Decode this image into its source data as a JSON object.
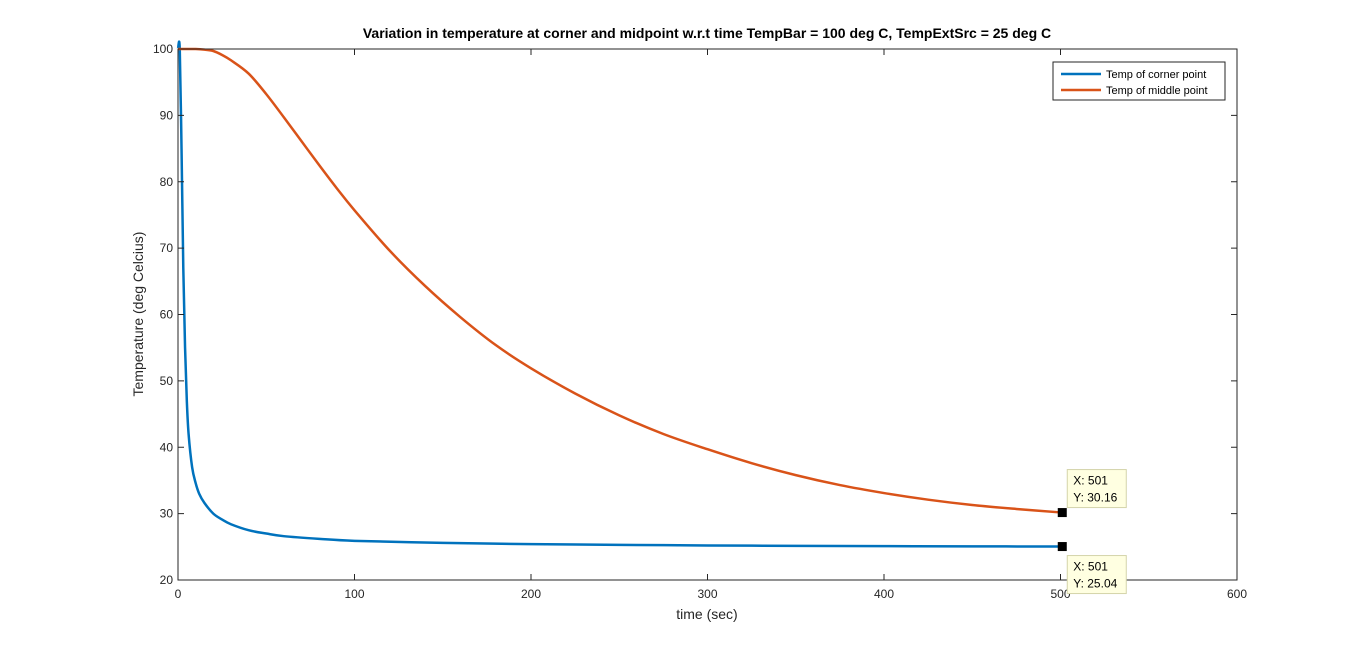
{
  "chart_data": {
    "type": "line",
    "title": "Variation in temperature at corner and midpoint w.r.t time  TempBar = 100 deg C, TempExtSrc = 25 deg C",
    "xlabel": "time (sec)",
    "ylabel": "Temperature (deg Celcius)",
    "xlim": [
      0,
      600
    ],
    "ylim": [
      20,
      100
    ],
    "xticks": [
      0,
      100,
      200,
      300,
      400,
      500,
      600
    ],
    "yticks": [
      20,
      30,
      40,
      50,
      60,
      70,
      80,
      90,
      100
    ],
    "grid": false,
    "legend_position": "top-right",
    "series": [
      {
        "name": "Temp of corner point",
        "color": "#0072BD",
        "x": [
          0,
          1,
          2,
          3,
          4,
          5,
          6,
          8,
          10,
          12,
          15,
          20,
          25,
          30,
          40,
          50,
          60,
          80,
          100,
          150,
          200,
          250,
          300,
          350,
          400,
          450,
          501
        ],
        "y": [
          100,
          100,
          85,
          67,
          55,
          47,
          42,
          37,
          34.6,
          33,
          31.6,
          30,
          29.1,
          28.4,
          27.5,
          27,
          26.6,
          26.2,
          25.9,
          25.6,
          25.4,
          25.3,
          25.2,
          25.15,
          25.1,
          25.07,
          25.04
        ]
      },
      {
        "name": "Temp of middle point",
        "color": "#D95319",
        "x": [
          0,
          5,
          10,
          15,
          20,
          25,
          30,
          40,
          50,
          60,
          70,
          80,
          90,
          100,
          120,
          140,
          160,
          180,
          200,
          225,
          250,
          275,
          300,
          325,
          350,
          375,
          400,
          425,
          450,
          475,
          501
        ],
        "y": [
          100,
          100,
          100,
          99.9,
          99.7,
          99.1,
          98.3,
          96.3,
          93.2,
          89.7,
          86.1,
          82.5,
          79,
          75.7,
          69.6,
          64.3,
          59.6,
          55.4,
          51.9,
          48.1,
          44.8,
          42,
          39.7,
          37.6,
          35.8,
          34.3,
          33.1,
          32.1,
          31.3,
          30.7,
          30.16
        ]
      }
    ],
    "datatips": [
      {
        "x_label": "X: 501",
        "y_label": "Y: 30.16",
        "x": 501,
        "y": 30.16,
        "placement": "above-right"
      },
      {
        "x_label": "X: 501",
        "y_label": "Y: 25.04",
        "x": 501,
        "y": 25.04,
        "placement": "below-right"
      }
    ]
  }
}
